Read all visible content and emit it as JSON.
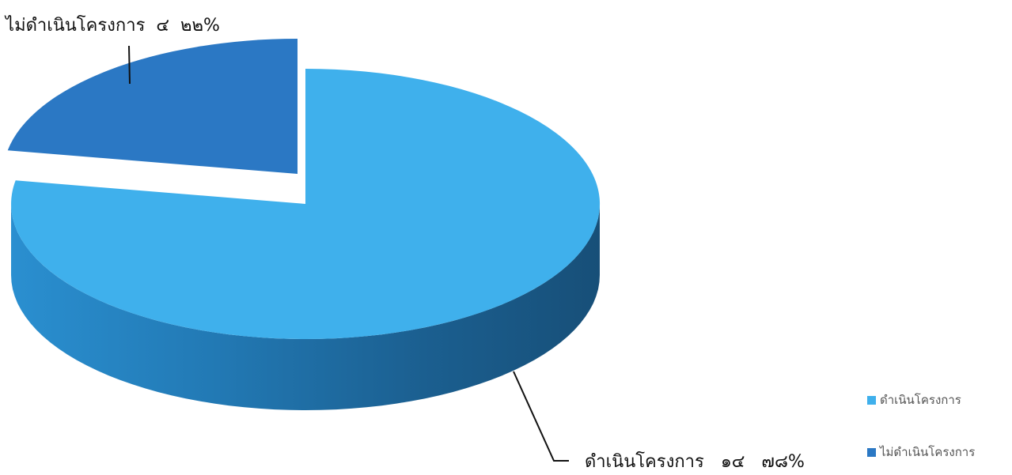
{
  "chart_data": {
    "type": "pie",
    "categories": [
      "ดำเนินโครงการ",
      "ไม่ดำเนินโครงการ"
    ],
    "values": [
      14,
      4
    ],
    "percentages": [
      78,
      22
    ],
    "colors": [
      "#3fb0ec",
      "#2b78c4"
    ],
    "labels": {
      "done": {
        "text": "ดำเนินโครงการ",
        "count": "๑๔",
        "percent": "๗๘%"
      },
      "not_done": {
        "text": "ไม่ดำเนินโครงการ",
        "count": "๔",
        "percent": "๒๒%"
      }
    },
    "legend": {
      "placement": "bottom-right",
      "items": [
        "ดำเนินโครงการ",
        "ไม่ดำเนินโครงการ"
      ]
    },
    "style": "3d-exploded"
  }
}
